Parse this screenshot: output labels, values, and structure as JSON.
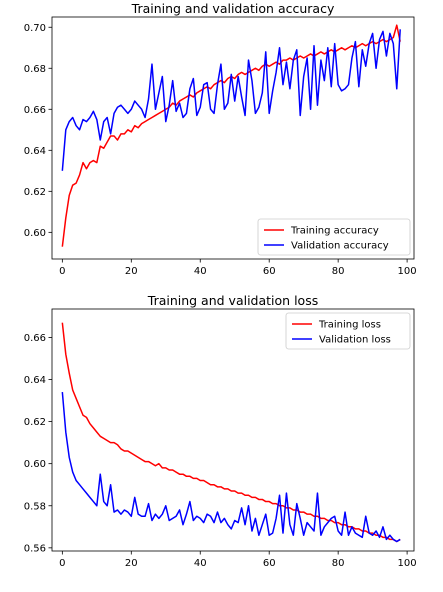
{
  "chart_data": [
    {
      "type": "line",
      "title": "Training and validation accuracy",
      "xlabel": "",
      "ylabel": "",
      "xlim": [
        -3,
        102
      ],
      "ylim": [
        0.587,
        0.705
      ],
      "xticks": [
        0,
        20,
        40,
        60,
        80,
        100
      ],
      "yticks": [
        0.6,
        0.62,
        0.64,
        0.66,
        0.68,
        0.7
      ],
      "grid": false,
      "legend": "lower-right",
      "series": [
        {
          "name": "Training accuracy",
          "color": "#ff0000",
          "x": [
            0,
            1,
            2,
            3,
            4,
            5,
            6,
            7,
            8,
            9,
            10,
            11,
            12,
            13,
            14,
            15,
            16,
            17,
            18,
            19,
            20,
            21,
            22,
            23,
            24,
            25,
            26,
            27,
            28,
            29,
            30,
            31,
            32,
            33,
            34,
            35,
            36,
            37,
            38,
            39,
            40,
            41,
            42,
            43,
            44,
            45,
            46,
            47,
            48,
            49,
            50,
            51,
            52,
            53,
            54,
            55,
            56,
            57,
            58,
            59,
            60,
            61,
            62,
            63,
            64,
            65,
            66,
            67,
            68,
            69,
            70,
            71,
            72,
            73,
            74,
            75,
            76,
            77,
            78,
            79,
            80,
            81,
            82,
            83,
            84,
            85,
            86,
            87,
            88,
            89,
            90,
            91,
            92,
            93,
            94,
            95,
            96,
            97,
            98
          ],
          "y": [
            0.593,
            0.607,
            0.618,
            0.623,
            0.624,
            0.628,
            0.634,
            0.631,
            0.634,
            0.635,
            0.634,
            0.642,
            0.641,
            0.644,
            0.647,
            0.647,
            0.645,
            0.648,
            0.648,
            0.65,
            0.649,
            0.652,
            0.651,
            0.653,
            0.654,
            0.655,
            0.656,
            0.657,
            0.658,
            0.659,
            0.66,
            0.661,
            0.663,
            0.662,
            0.664,
            0.665,
            0.666,
            0.667,
            0.666,
            0.668,
            0.669,
            0.67,
            0.671,
            0.67,
            0.672,
            0.673,
            0.674,
            0.673,
            0.675,
            0.676,
            0.675,
            0.677,
            0.678,
            0.677,
            0.678,
            0.679,
            0.68,
            0.679,
            0.681,
            0.682,
            0.681,
            0.682,
            0.683,
            0.682,
            0.684,
            0.684,
            0.685,
            0.684,
            0.685,
            0.686,
            0.685,
            0.686,
            0.687,
            0.686,
            0.687,
            0.688,
            0.687,
            0.688,
            0.689,
            0.688,
            0.689,
            0.69,
            0.689,
            0.69,
            0.691,
            0.69,
            0.691,
            0.692,
            0.691,
            0.692,
            0.693,
            0.692,
            0.693,
            0.694,
            0.693,
            0.694,
            0.695,
            0.701,
            0.693
          ]
        },
        {
          "name": "Validation accuracy",
          "color": "#0000ff",
          "x": [
            0,
            1,
            2,
            3,
            4,
            5,
            6,
            7,
            8,
            9,
            10,
            11,
            12,
            13,
            14,
            15,
            16,
            17,
            18,
            19,
            20,
            21,
            22,
            23,
            24,
            25,
            26,
            27,
            28,
            29,
            30,
            31,
            32,
            33,
            34,
            35,
            36,
            37,
            38,
            39,
            40,
            41,
            42,
            43,
            44,
            45,
            46,
            47,
            48,
            49,
            50,
            51,
            52,
            53,
            54,
            55,
            56,
            57,
            58,
            59,
            60,
            61,
            62,
            63,
            64,
            65,
            66,
            67,
            68,
            69,
            70,
            71,
            72,
            73,
            74,
            75,
            76,
            77,
            78,
            79,
            80,
            81,
            82,
            83,
            84,
            85,
            86,
            87,
            88,
            89,
            90,
            91,
            92,
            93,
            94,
            95,
            96,
            97,
            98
          ],
          "y": [
            0.63,
            0.65,
            0.654,
            0.656,
            0.652,
            0.65,
            0.655,
            0.654,
            0.656,
            0.659,
            0.655,
            0.645,
            0.654,
            0.656,
            0.648,
            0.658,
            0.661,
            0.662,
            0.66,
            0.658,
            0.66,
            0.664,
            0.662,
            0.66,
            0.656,
            0.665,
            0.682,
            0.66,
            0.668,
            0.676,
            0.654,
            0.662,
            0.674,
            0.659,
            0.663,
            0.656,
            0.658,
            0.67,
            0.675,
            0.657,
            0.661,
            0.672,
            0.673,
            0.66,
            0.658,
            0.672,
            0.682,
            0.66,
            0.663,
            0.677,
            0.664,
            0.676,
            0.666,
            0.657,
            0.684,
            0.674,
            0.658,
            0.661,
            0.668,
            0.688,
            0.658,
            0.669,
            0.678,
            0.69,
            0.672,
            0.683,
            0.67,
            0.684,
            0.689,
            0.657,
            0.676,
            0.685,
            0.66,
            0.691,
            0.662,
            0.684,
            0.674,
            0.69,
            0.671,
            0.692,
            0.672,
            0.669,
            0.67,
            0.672,
            0.685,
            0.693,
            0.671,
            0.689,
            0.681,
            0.692,
            0.697,
            0.68,
            0.694,
            0.698,
            0.686,
            0.697,
            0.692,
            0.67,
            0.699
          ]
        }
      ]
    },
    {
      "type": "line",
      "title": "Training and validation loss",
      "xlabel": "",
      "ylabel": "",
      "xlim": [
        -3,
        102
      ],
      "ylim": [
        0.5585,
        0.6735
      ],
      "xticks": [
        0,
        20,
        40,
        60,
        80,
        100
      ],
      "yticks": [
        0.56,
        0.58,
        0.6,
        0.62,
        0.64,
        0.66
      ],
      "grid": false,
      "legend": "upper-right",
      "series": [
        {
          "name": "Training loss",
          "color": "#ff0000",
          "x": [
            0,
            1,
            2,
            3,
            4,
            5,
            6,
            7,
            8,
            9,
            10,
            11,
            12,
            13,
            14,
            15,
            16,
            17,
            18,
            19,
            20,
            21,
            22,
            23,
            24,
            25,
            26,
            27,
            28,
            29,
            30,
            31,
            32,
            33,
            34,
            35,
            36,
            37,
            38,
            39,
            40,
            41,
            42,
            43,
            44,
            45,
            46,
            47,
            48,
            49,
            50,
            51,
            52,
            53,
            54,
            55,
            56,
            57,
            58,
            59,
            60,
            61,
            62,
            63,
            64,
            65,
            66,
            67,
            68,
            69,
            70,
            71,
            72,
            73,
            74,
            75,
            76,
            77,
            78,
            79,
            80,
            81,
            82,
            83,
            84,
            85,
            86,
            87,
            88,
            89,
            90,
            91,
            92,
            93,
            94,
            95,
            96,
            97,
            98
          ],
          "y": [
            0.667,
            0.652,
            0.643,
            0.635,
            0.631,
            0.627,
            0.623,
            0.622,
            0.619,
            0.617,
            0.615,
            0.613,
            0.612,
            0.611,
            0.61,
            0.61,
            0.609,
            0.607,
            0.606,
            0.606,
            0.605,
            0.604,
            0.603,
            0.602,
            0.601,
            0.601,
            0.6,
            0.599,
            0.6,
            0.598,
            0.598,
            0.597,
            0.597,
            0.596,
            0.595,
            0.595,
            0.594,
            0.594,
            0.593,
            0.593,
            0.592,
            0.592,
            0.591,
            0.59,
            0.59,
            0.589,
            0.589,
            0.588,
            0.588,
            0.587,
            0.587,
            0.586,
            0.586,
            0.585,
            0.585,
            0.584,
            0.584,
            0.583,
            0.583,
            0.582,
            0.582,
            0.581,
            0.581,
            0.58,
            0.58,
            0.579,
            0.579,
            0.578,
            0.578,
            0.577,
            0.577,
            0.576,
            0.576,
            0.575,
            0.575,
            0.574,
            0.574,
            0.573,
            0.573,
            0.572,
            0.572,
            0.571,
            0.571,
            0.57,
            0.57,
            0.569,
            0.569,
            0.568,
            0.568,
            0.567,
            0.567,
            0.566,
            0.566,
            0.565,
            0.565,
            0.564,
            0.564,
            0.563,
            0.564
          ]
        },
        {
          "name": "Validation loss",
          "color": "#0000ff",
          "x": [
            0,
            1,
            2,
            3,
            4,
            5,
            6,
            7,
            8,
            9,
            10,
            11,
            12,
            13,
            14,
            15,
            16,
            17,
            18,
            19,
            20,
            21,
            22,
            23,
            24,
            25,
            26,
            27,
            28,
            29,
            30,
            31,
            32,
            33,
            34,
            35,
            36,
            37,
            38,
            39,
            40,
            41,
            42,
            43,
            44,
            45,
            46,
            47,
            48,
            49,
            50,
            51,
            52,
            53,
            54,
            55,
            56,
            57,
            58,
            59,
            60,
            61,
            62,
            63,
            64,
            65,
            66,
            67,
            68,
            69,
            70,
            71,
            72,
            73,
            74,
            75,
            76,
            77,
            78,
            79,
            80,
            81,
            82,
            83,
            84,
            85,
            86,
            87,
            88,
            89,
            90,
            91,
            92,
            93,
            94,
            95,
            96,
            97,
            98
          ],
          "y": [
            0.634,
            0.615,
            0.603,
            0.596,
            0.592,
            0.59,
            0.588,
            0.586,
            0.584,
            0.582,
            0.58,
            0.595,
            0.582,
            0.58,
            0.59,
            0.577,
            0.578,
            0.576,
            0.578,
            0.577,
            0.575,
            0.584,
            0.576,
            0.575,
            0.575,
            0.581,
            0.573,
            0.576,
            0.574,
            0.576,
            0.58,
            0.573,
            0.574,
            0.575,
            0.578,
            0.571,
            0.576,
            0.582,
            0.573,
            0.575,
            0.574,
            0.572,
            0.576,
            0.575,
            0.572,
            0.577,
            0.572,
            0.574,
            0.571,
            0.569,
            0.573,
            0.572,
            0.579,
            0.571,
            0.58,
            0.568,
            0.574,
            0.566,
            0.571,
            0.576,
            0.566,
            0.567,
            0.574,
            0.585,
            0.567,
            0.586,
            0.571,
            0.566,
            0.581,
            0.574,
            0.566,
            0.572,
            0.57,
            0.568,
            0.586,
            0.566,
            0.57,
            0.572,
            0.574,
            0.575,
            0.568,
            0.566,
            0.577,
            0.566,
            0.57,
            0.567,
            0.566,
            0.565,
            0.575,
            0.567,
            0.566,
            0.568,
            0.565,
            0.57,
            0.564,
            0.566,
            0.564,
            0.563,
            0.564
          ]
        }
      ]
    }
  ]
}
